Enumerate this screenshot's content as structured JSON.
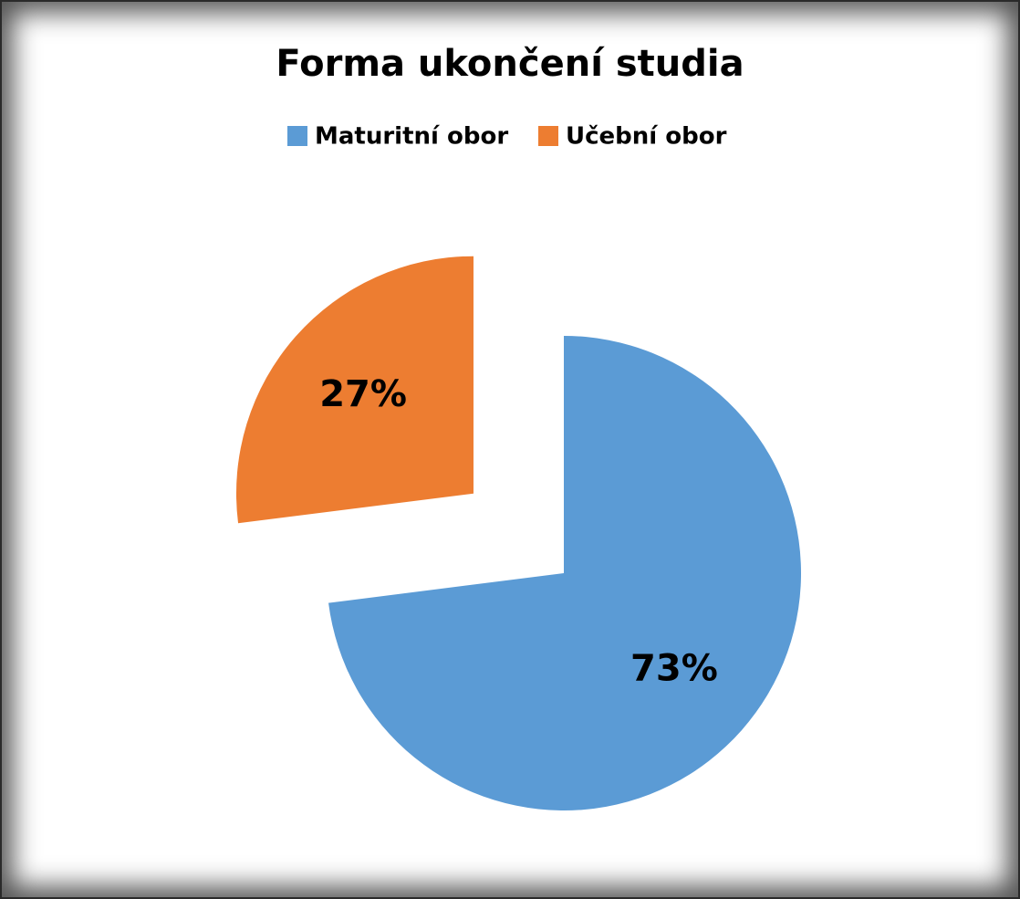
{
  "chart_data": {
    "type": "pie",
    "title": "Forma ukončení studia",
    "categories": [
      "Maturitní obor",
      "Učební obor"
    ],
    "values": [
      73,
      27
    ],
    "value_labels": [
      "73%",
      "27%"
    ],
    "colors": [
      "#5b9bd5",
      "#ed7d31"
    ],
    "legend": "top"
  }
}
